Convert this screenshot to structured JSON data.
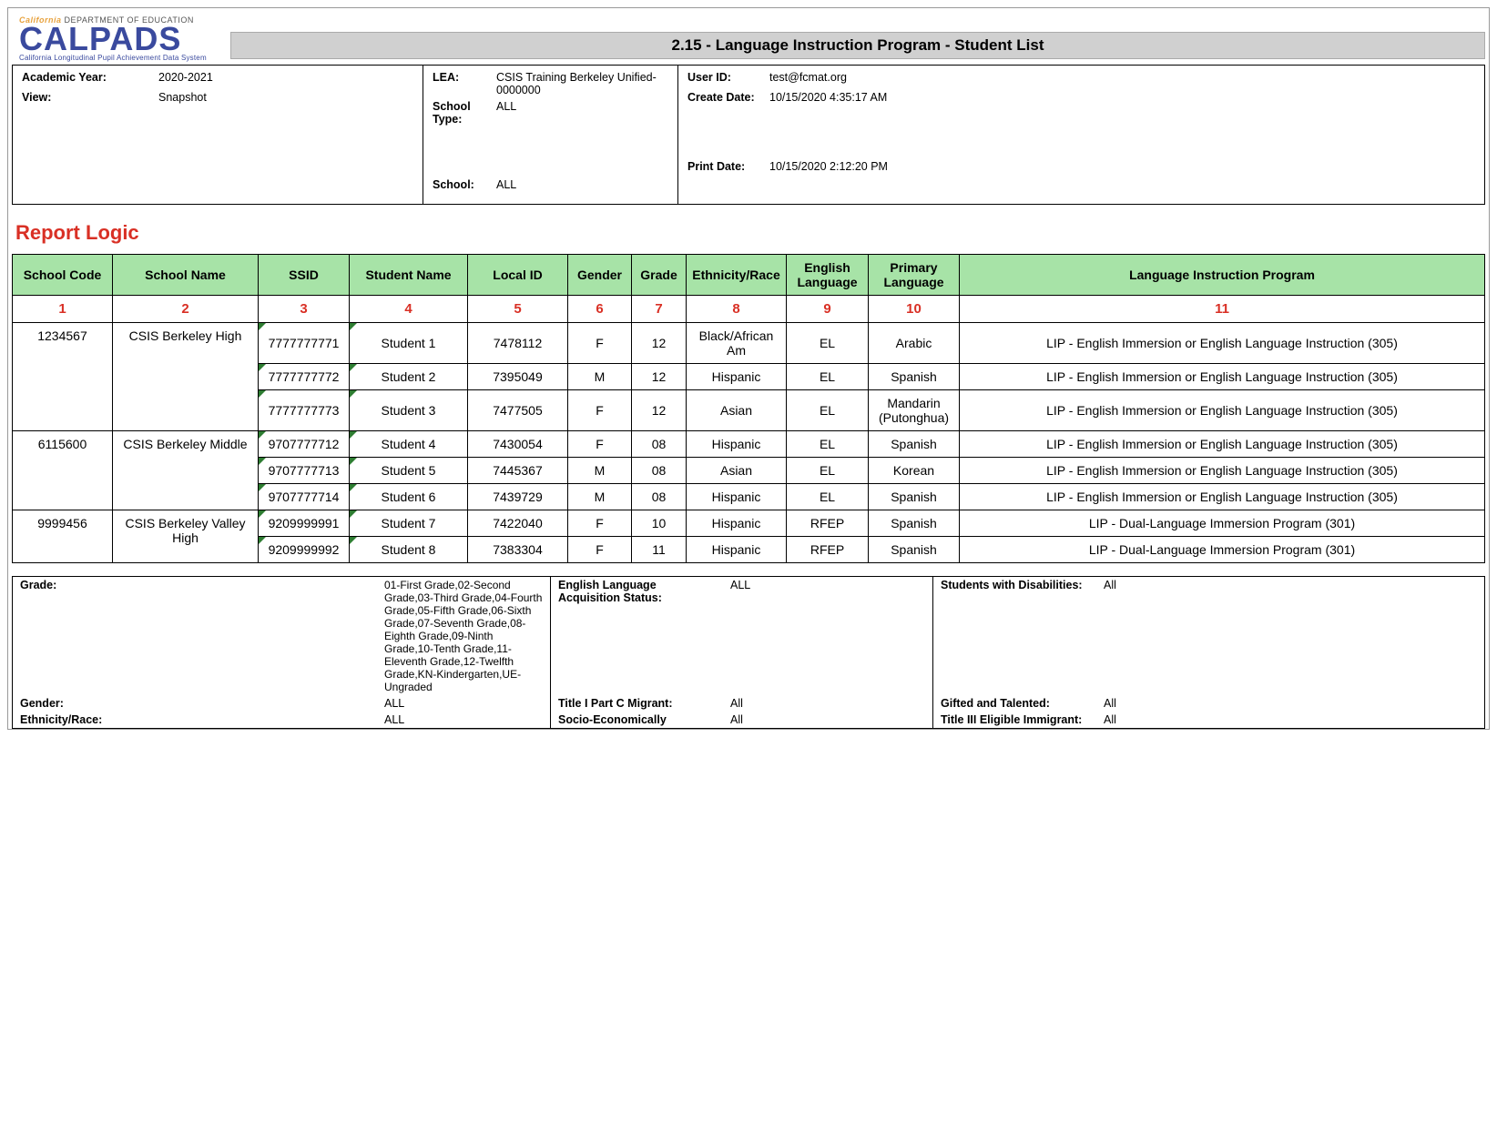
{
  "logo": {
    "dept_prefix": "California",
    "dept": "DEPARTMENT OF EDUCATION",
    "main": "CALPADS",
    "sub": "California Longitudinal Pupil Achievement Data System"
  },
  "title": "2.15 - Language Instruction Program - Student List",
  "meta": {
    "academic_year_label": "Academic Year:",
    "academic_year": "2020-2021",
    "view_label": "View:",
    "view": "Snapshot",
    "lea_label": "LEA:",
    "lea": "CSIS Training Berkeley Unified-0000000",
    "school_type_label": "School Type:",
    "school_type": "ALL",
    "school_label": "School:",
    "school": "ALL",
    "user_id_label": "User ID:",
    "user_id": "test@fcmat.org",
    "create_date_label": "Create Date:",
    "create_date": "10/15/2020 4:35:17 AM",
    "print_date_label": "Print Date:",
    "print_date": "10/15/2020 2:12:20 PM"
  },
  "section_heading": "Report Logic",
  "table": {
    "headers": [
      "School Code",
      "School Name",
      "SSID",
      "Student Name",
      "Local ID",
      "Gender",
      "Grade",
      "Ethnicity/Race",
      "English Language",
      "Primary Language",
      "Language Instruction Program"
    ],
    "numbers": [
      "1",
      "2",
      "3",
      "4",
      "5",
      "6",
      "7",
      "8",
      "9",
      "10",
      "11"
    ],
    "col_widths": [
      "110",
      "160",
      "100",
      "130",
      "110",
      "70",
      "60",
      "110",
      "90",
      "100",
      "auto"
    ],
    "groups": [
      {
        "school_code": "1234567",
        "school_name": "CSIS Berkeley High",
        "rows": [
          {
            "ssid": "7777777771",
            "student": "Student 1",
            "local": "7478112",
            "gender": "F",
            "grade": "12",
            "eth": "Black/African Am",
            "el": "EL",
            "lang": "Arabic",
            "prog": "LIP - English Immersion or English Language Instruction (305)"
          },
          {
            "ssid": "7777777772",
            "student": "Student 2",
            "local": "7395049",
            "gender": "M",
            "grade": "12",
            "eth": "Hispanic",
            "el": "EL",
            "lang": "Spanish",
            "prog": "LIP - English Immersion or English Language Instruction (305)"
          },
          {
            "ssid": "7777777773",
            "student": "Student 3",
            "local": "7477505",
            "gender": "F",
            "grade": "12",
            "eth": "Asian",
            "el": "EL",
            "lang": "Mandarin (Putonghua)",
            "prog": "LIP - English Immersion or English Language Instruction (305)"
          }
        ]
      },
      {
        "school_code": "6115600",
        "school_name": "CSIS Berkeley Middle",
        "rows": [
          {
            "ssid": "9707777712",
            "student": "Student 4",
            "local": "7430054",
            "gender": "F",
            "grade": "08",
            "eth": "Hispanic",
            "el": "EL",
            "lang": "Spanish",
            "prog": "LIP - English Immersion or English Language Instruction (305)"
          },
          {
            "ssid": "9707777713",
            "student": "Student 5",
            "local": "7445367",
            "gender": "M",
            "grade": "08",
            "eth": "Asian",
            "el": "EL",
            "lang": "Korean",
            "prog": "LIP - English Immersion or English Language Instruction (305)"
          },
          {
            "ssid": "9707777714",
            "student": "Student 6",
            "local": "7439729",
            "gender": "M",
            "grade": "08",
            "eth": "Hispanic",
            "el": "EL",
            "lang": "Spanish",
            "prog": "LIP - English Immersion or English Language Instruction (305)"
          }
        ]
      },
      {
        "school_code": "9999456",
        "school_name": "CSIS Berkeley Valley High",
        "rows": [
          {
            "ssid": "9209999991",
            "student": "Student 7",
            "local": "7422040",
            "gender": "F",
            "grade": "10",
            "eth": "Hispanic",
            "el": "RFEP",
            "lang": "Spanish",
            "prog": "LIP - Dual-Language Immersion Program (301)"
          },
          {
            "ssid": "9209999992",
            "student": "Student 8",
            "local": "7383304",
            "gender": "F",
            "grade": "11",
            "eth": "Hispanic",
            "el": "RFEP",
            "lang": "Spanish",
            "prog": "LIP - Dual-Language Immersion Program (301)"
          }
        ]
      }
    ]
  },
  "footer": {
    "grade_label": "Grade:",
    "grade_value": "01-First Grade,02-Second Grade,03-Third Grade,04-Fourth Grade,05-Fifth Grade,06-Sixth Grade,07-Seventh Grade,08-Eighth Grade,09-Ninth Grade,10-Tenth Grade,11-Eleventh Grade,12-Twelfth Grade,KN-Kindergarten,UE-Ungraded",
    "elas_label": "English Language Acquisition Status:",
    "elas_value": "ALL",
    "swd_label": "Students with Disabilities:",
    "swd_value": "All",
    "gender_label": "Gender:",
    "gender_value": "ALL",
    "t1_label": "Title I Part C Migrant:",
    "t1_value": "All",
    "gt_label": "Gifted and Talented:",
    "gt_value": "All",
    "eth_label": "Ethnicity/Race:",
    "eth_value": "ALL",
    "se_label": "Socio-Economically",
    "se_value": "All",
    "t3_label": "Title III Eligible Immigrant:",
    "t3_value": "All"
  },
  "colors": {
    "header_bg": "#a7e3a7",
    "heading": "#d93025",
    "logo_blue": "#3a4a9e",
    "title_bar_bg": "#d0d0d0"
  }
}
